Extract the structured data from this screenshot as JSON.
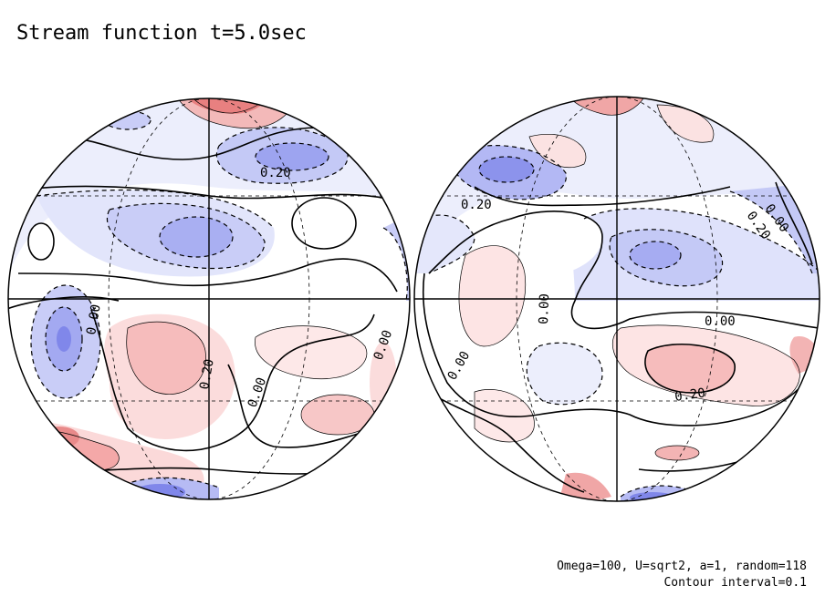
{
  "title": "Stream function t=5.0sec",
  "footer": {
    "params": "Omega=100, U=sqrt2, a=1, random=118",
    "contour_interval": "Contour interval=0.1"
  },
  "colors": {
    "negative": "#7f86e8",
    "negative_light": "#dfe2fb",
    "positive": "#ef8f8f",
    "positive_light": "#fbe2e2",
    "line": "#000000",
    "background": "#ffffff"
  },
  "hemispheres": [
    {
      "name": "left",
      "labels": [
        "0.20",
        "0.00",
        "0.20",
        "0.00",
        "0.00"
      ]
    },
    {
      "name": "right",
      "labels": [
        "0.20",
        "0.00",
        "0.20",
        "0.00",
        "0.00",
        "0.00",
        "0.20"
      ]
    }
  ]
}
